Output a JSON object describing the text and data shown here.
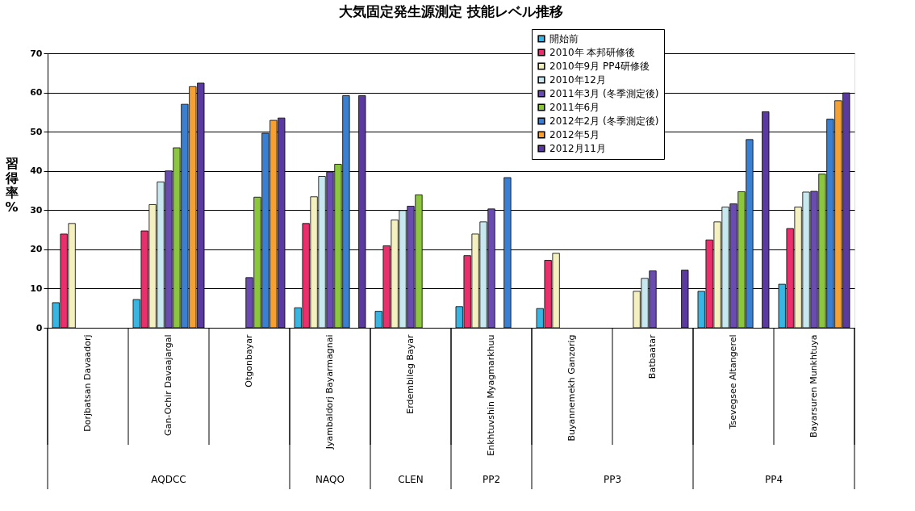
{
  "chart_data": {
    "type": "bar",
    "title": "大気固定発生源測定  技能レベル推移",
    "ylabel": "習得率 %",
    "categories": [
      "Dorjbatsan Davaadorj",
      "Gan-Ochir Davaajargal",
      "Otgonbayar",
      "Jyambaldorj Bayarmagnai",
      "Erdembileg Bayar",
      "Enkhtuvshin Myagmarkhuu",
      "Buyannemekh Ganzorig",
      "Batbaatar",
      "Tsevegsee Altangerel",
      "Bayarsuren Munkhtuya"
    ],
    "series": [
      {
        "name": "開始前",
        "color": "#3ab4e0",
        "values": [
          6.4,
          7.2,
          null,
          5.1,
          4.2,
          5.4,
          4.9,
          null,
          9.3,
          11.1
        ]
      },
      {
        "name": "2010年 本邦研修後",
        "color": "#e8306c",
        "values": [
          23.9,
          24.7,
          null,
          26.6,
          20.9,
          18.4,
          17.2,
          null,
          22.4,
          25.3
        ]
      },
      {
        "name": "2010年9月 PP4研修後",
        "color": "#f5f0c0",
        "values": [
          26.6,
          31.4,
          null,
          33.4,
          27.5,
          23.9,
          19.0,
          9.3,
          27.0,
          30.8
        ]
      },
      {
        "name": "2010年12月",
        "color": "#c8e8f0",
        "values": [
          null,
          37.2,
          null,
          38.6,
          29.9,
          27.0,
          null,
          12.6,
          30.8,
          34.6
        ]
      },
      {
        "name": "2011年3月 (冬季測定後)",
        "color": "#6a4cb0",
        "values": [
          null,
          40.0,
          12.8,
          39.7,
          31.0,
          30.3,
          null,
          14.5,
          31.6,
          34.8
        ]
      },
      {
        "name": "2011年6月",
        "color": "#8cc63f",
        "values": [
          null,
          45.9,
          33.3,
          41.7,
          33.9,
          null,
          null,
          null,
          34.7,
          39.2
        ]
      },
      {
        "name": "2012年2月 (冬季測定後)",
        "color": "#3a7fd0",
        "values": [
          null,
          57.0,
          49.6,
          59.2,
          null,
          38.3,
          null,
          null,
          48.0,
          53.2
        ]
      },
      {
        "name": "2012年5月",
        "color": "#f5a030",
        "values": [
          null,
          61.5,
          52.9,
          null,
          null,
          null,
          null,
          null,
          null,
          57.9
        ]
      },
      {
        "name": "2012月11月",
        "color": "#5a3aa0",
        "values": [
          null,
          62.4,
          53.5,
          59.2,
          null,
          null,
          null,
          14.7,
          55.1,
          59.9
        ]
      }
    ],
    "ylim": [
      0,
      70
    ],
    "yticks": [
      0,
      10,
      20,
      30,
      40,
      50,
      60,
      70
    ],
    "grid": "y",
    "legend": "top right",
    "annotations": [
      "AQDCC",
      "NAQO",
      "CLEN",
      "PP2",
      "PP3",
      "PP4"
    ]
  }
}
